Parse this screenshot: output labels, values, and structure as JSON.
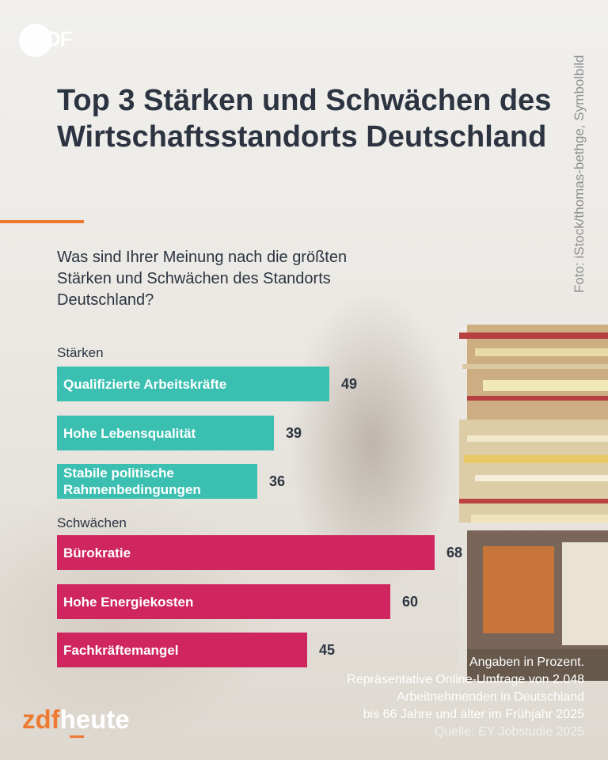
{
  "photo_credit": "Foto: iStock/thomas-bethge, Symbolbild",
  "logo_top": "DF",
  "title": "Top 3 Stärken und Schwächen des Wirtschaftsstandorts Deutschland",
  "question": "Was sind Ihrer Meinung nach die größten Stärken und Schwächen des Standorts Deutschland?",
  "notes": {
    "unit": "Angaben in Prozent.",
    "line1": "Repräsentative Online-Umfrage von 2.048",
    "line2": "Arbeitnehmenden in Deutschland",
    "line3": "bis 66 Jahre und älter im Frühjahr 2025",
    "source": "Quelle: EY Jobstudie 2025"
  },
  "brand": {
    "part1": "zdf",
    "part2": "heute"
  },
  "colors": {
    "strengths": "#3bbfb1",
    "weaknesses": "#d0265f",
    "accent": "#ee7a31",
    "text": "#2b3440"
  },
  "chart_data": {
    "type": "bar",
    "orientation": "horizontal",
    "title": "Top 3 Stärken und Schwächen des Wirtschaftsstandorts Deutschland",
    "unit": "Prozent",
    "groups": [
      {
        "name": "Stärken",
        "color": "#3bbfb1",
        "items": [
          {
            "label": "Qualifizierte Arbeitskräfte",
            "value": 49
          },
          {
            "label": "Hohe Lebensqualität",
            "value": 39
          },
          {
            "label": "Stabile politische Rahmenbedingungen",
            "value": 36
          }
        ]
      },
      {
        "name": "Schwächen",
        "color": "#d0265f",
        "items": [
          {
            "label": "Bürokratie",
            "value": 68
          },
          {
            "label": "Hohe Energiekosten",
            "value": 60
          },
          {
            "label": "Fachkräftemangel",
            "value": 45
          }
        ]
      }
    ]
  }
}
